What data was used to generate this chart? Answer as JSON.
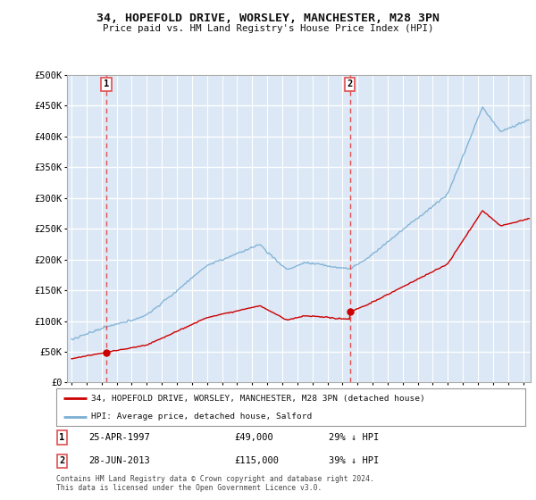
{
  "title": "34, HOPEFOLD DRIVE, WORSLEY, MANCHESTER, M28 3PN",
  "subtitle": "Price paid vs. HM Land Registry's House Price Index (HPI)",
  "ylabel_ticks": [
    "£0",
    "£50K",
    "£100K",
    "£150K",
    "£200K",
    "£250K",
    "£300K",
    "£350K",
    "£400K",
    "£450K",
    "£500K"
  ],
  "ytick_values": [
    0,
    50000,
    100000,
    150000,
    200000,
    250000,
    300000,
    350000,
    400000,
    450000,
    500000
  ],
  "ylim": [
    0,
    500000
  ],
  "xlim_start": 1994.7,
  "xlim_end": 2025.5,
  "sale1_x": 1997.32,
  "sale1_y": 49000,
  "sale2_x": 2013.49,
  "sale2_y": 115000,
  "sale1_label": "25-APR-1997",
  "sale1_price": "£49,000",
  "sale1_hpi": "29% ↓ HPI",
  "sale2_label": "28-JUN-2013",
  "sale2_price": "£115,000",
  "sale2_hpi": "39% ↓ HPI",
  "legend_line1": "34, HOPEFOLD DRIVE, WORSLEY, MANCHESTER, M28 3PN (detached house)",
  "legend_line2": "HPI: Average price, detached house, Salford",
  "footnote": "Contains HM Land Registry data © Crown copyright and database right 2024.\nThis data is licensed under the Open Government Licence v3.0.",
  "plot_bg_color": "#dce8f5",
  "grid_color": "#ffffff",
  "fig_bg_color": "#ffffff",
  "red_line_color": "#cc0000",
  "blue_line_color": "#7bafd4",
  "dashed_color": "#e05050"
}
